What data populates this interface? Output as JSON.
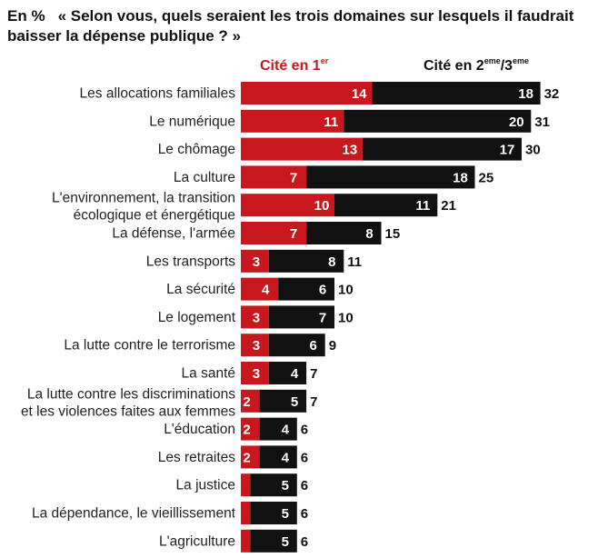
{
  "header": {
    "unit": "En %",
    "question": "« Selon vous, quels seraient les trois domaines sur lesquels il faudrait baisser la dépense publique ? »"
  },
  "legend": {
    "first": {
      "text": "Cité en 1",
      "sup": "er"
    },
    "second": {
      "text1": "Cité en 2",
      "sup1": "eme",
      "text2": "/3",
      "sup2": "eme"
    }
  },
  "colors": {
    "first": "#c8171d",
    "second": "#111111"
  },
  "chart_data": {
    "type": "bar",
    "orientation": "horizontal",
    "stacked": true,
    "categories": [
      [
        "Les allocations familiales"
      ],
      [
        "Le numérique"
      ],
      [
        "Le chômage"
      ],
      [
        "La culture"
      ],
      [
        "L'environnement, la transition",
        "écologique et énergétique"
      ],
      [
        "La défense, l'armée"
      ],
      [
        "Les transports"
      ],
      [
        "La sécurité"
      ],
      [
        "Le logement"
      ],
      [
        "La lutte contre le terrorisme"
      ],
      [
        "La santé"
      ],
      [
        "La lutte contre les discriminations",
        "et les violences faites aux femmes"
      ],
      [
        "L'éducation"
      ],
      [
        "Les retraites"
      ],
      [
        "La justice"
      ],
      [
        "La dépendance, le vieillissement"
      ],
      [
        "L'agriculture"
      ]
    ],
    "series": [
      {
        "name": "Cité en 1er",
        "values": [
          14,
          11,
          13,
          7,
          10,
          7,
          3,
          4,
          3,
          3,
          3,
          2,
          2,
          2,
          1,
          1,
          1
        ]
      },
      {
        "name": "Cité en 2eme/3eme",
        "values": [
          18,
          20,
          17,
          18,
          11,
          8,
          8,
          6,
          7,
          6,
          4,
          5,
          4,
          4,
          5,
          5,
          5
        ]
      }
    ],
    "totals": [
      32,
      31,
      30,
      25,
      21,
      15,
      11,
      10,
      10,
      9,
      7,
      7,
      6,
      6,
      6,
      6,
      6
    ]
  }
}
